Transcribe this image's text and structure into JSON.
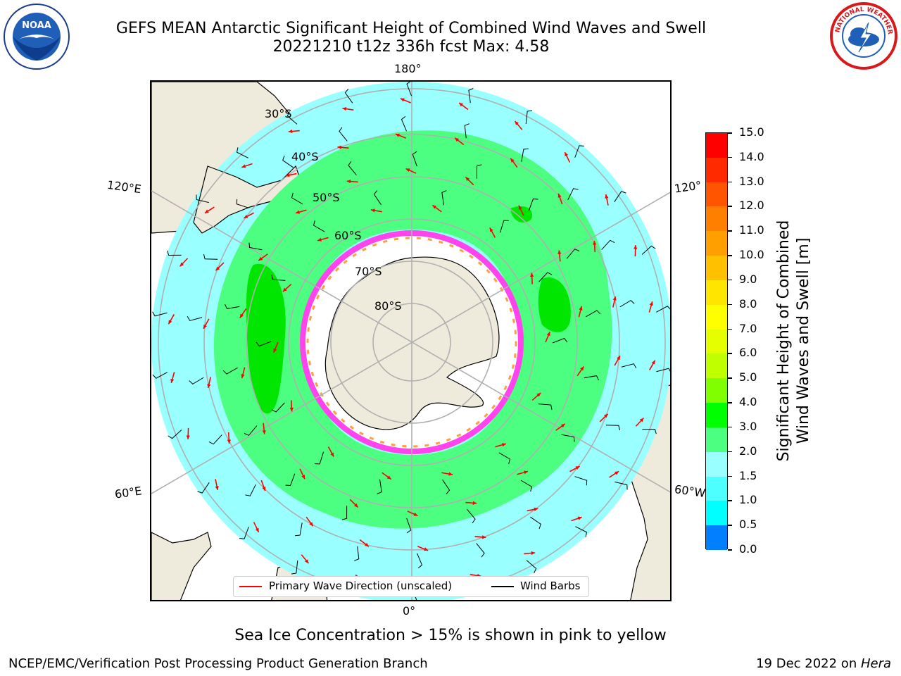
{
  "header": {
    "title_line1": "GEFS MEAN Antarctic Significant Height of Combined Wind Waves and Swell",
    "title_line2": "20221210 t12z 336h fcst   Max: 4.58"
  },
  "logos": {
    "left": "NOAA",
    "right": "NATIONAL WEATHER SERVICE"
  },
  "map": {
    "projection": "south-polar-stereographic",
    "longitude_labels": {
      "top": "180°",
      "bottom": "0°",
      "upper_left": "120°E",
      "upper_right": "120°",
      "lower_left": "60°E",
      "lower_right": "60°W"
    },
    "latitude_labels": [
      "30°S",
      "40°S",
      "50°S",
      "60°S",
      "70°S",
      "80°S"
    ],
    "colors": {
      "land": "#efebdc",
      "ocean_low": "#99ffff",
      "ocean_mid": "#4dff80",
      "ocean_high": "#00e600",
      "ice": "#ffffff",
      "ice_edge": "#ff44ee",
      "arrows": "#ff0000",
      "barbs": "#000000",
      "graticule": "#b0b0b0"
    }
  },
  "legend": {
    "wave_direction": "Primary Wave Direction (unscaled)",
    "wind_barbs": "Wind Barbs"
  },
  "colorbar": {
    "label_line1": "Significant Height of Combined",
    "label_line2": "Wind Waves and Swell [m]",
    "ticks": [
      "15.0",
      "14.0",
      "13.0",
      "12.0",
      "11.0",
      "10.0",
      "9.0",
      "8.0",
      "7.0",
      "6.0",
      "5.0",
      "4.0",
      "3.0",
      "2.0",
      "1.5",
      "1.0",
      "0.5",
      "0.0"
    ],
    "bands": [
      "#ff0000",
      "#ff2a00",
      "#ff5500",
      "#ff7f00",
      "#ff9f00",
      "#ffc000",
      "#ffe600",
      "#ffff00",
      "#e6ff00",
      "#c0ff00",
      "#80ff00",
      "#00ff00",
      "#4dff80",
      "#99ffff",
      "#4dffff",
      "#00ffff",
      "#0080ff",
      "#0000ff"
    ]
  },
  "caption": "Sea Ice Concentration > 15% is shown in pink to yellow",
  "footer": {
    "left": "NCEP/EMC/Verification Post Processing Product Generation Branch",
    "right_date": "19 Dec 2022 on ",
    "right_machine": "Hera"
  }
}
